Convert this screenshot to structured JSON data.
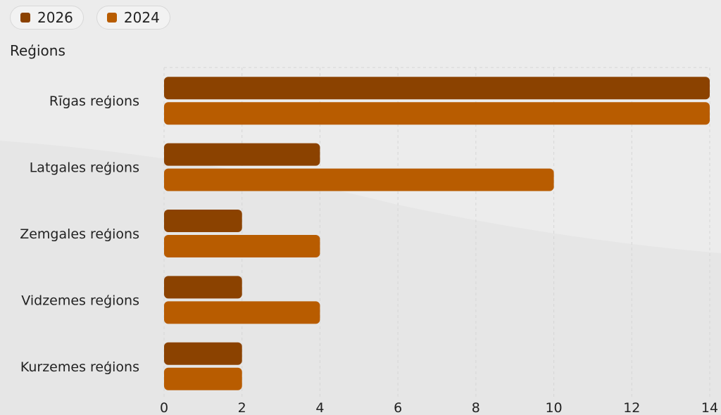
{
  "chart_data": {
    "type": "bar",
    "orientation": "horizontal",
    "ylabel": "Reģions",
    "xlabel": "",
    "categories": [
      "Rīgas reģions",
      "Latgales reģions",
      "Zemgales reģions",
      "Vidzemes reģions",
      "Kurzemes reģions"
    ],
    "series": [
      {
        "name": "2026",
        "color": "#8b4200",
        "values": [
          14,
          4,
          2,
          2,
          2
        ]
      },
      {
        "name": "2024",
        "color": "#b85c00",
        "values": [
          14,
          10,
          4,
          4,
          2
        ]
      }
    ],
    "xlim": [
      0,
      14
    ],
    "xticks": [
      0,
      2,
      4,
      6,
      8,
      10,
      12,
      14
    ],
    "grid": true,
    "legend_position": "top-left"
  }
}
